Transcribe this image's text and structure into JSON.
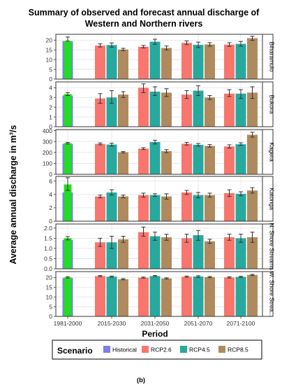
{
  "title_line1": "Summary of observed and forecast annual discharge of",
  "title_line2": "Western and Northern rivers",
  "ylabel": "Average annual discharge in m³/s",
  "xlabel": "Period",
  "caption": "(b)",
  "legend": {
    "title": "Scenario",
    "items": [
      {
        "label": "Historical",
        "color": "#7f7fea"
      },
      {
        "label": "RCP2.6",
        "color": "#f8766d"
      },
      {
        "label": "RCP4.5",
        "color": "#28a99e"
      },
      {
        "label": "RCP8.5",
        "color": "#b08a5f"
      }
    ]
  },
  "chart_data": {
    "type": "bar",
    "categories": [
      "1981-2000",
      "2015-2030",
      "2031-2050",
      "2051-2070",
      "2071-2100"
    ],
    "historical_color_fill": "#22dd22",
    "historical_color_border": "#7f7fea",
    "series_colors": {
      "RCP2.6": "#f8766d",
      "RCP4.5": "#28a99e",
      "RCP8.5": "#b08a5f"
    },
    "panels": [
      {
        "name": "Biharamulo",
        "ylim": [
          0,
          23
        ],
        "ticks": [
          0,
          5,
          10,
          15,
          20
        ],
        "tick_labels": [
          "0",
          "5",
          "10",
          "15",
          "20"
        ],
        "historical": {
          "value": 19.5,
          "err": [
            19.5,
            21.6
          ],
          "mean": 19.5
        },
        "series": [
          {
            "name": "RCP2.6",
            "values": [
              17.2,
              16.6,
              18.6,
              17.7
            ],
            "err": [
              [
                16.5,
                18.1
              ],
              [
                16.0,
                17.3
              ],
              [
                17.7,
                19.6
              ],
              [
                16.8,
                18.7
              ]
            ]
          },
          {
            "name": "RCP4.5",
            "values": [
              17.5,
              19.2,
              17.6,
              18.1
            ],
            "err": [
              [
                16.4,
                18.6
              ],
              [
                17.9,
                20.5
              ],
              [
                16.2,
                19.0
              ],
              [
                16.9,
                19.3
              ]
            ]
          },
          {
            "name": "RCP8.5",
            "values": [
              15.2,
              16.0,
              17.8,
              21.0
            ],
            "err": [
              [
                14.6,
                15.8
              ],
              [
                15.0,
                17.0
              ],
              [
                16.9,
                18.7
              ],
              [
                19.9,
                22.0
              ]
            ]
          }
        ]
      },
      {
        "name": "Bukora",
        "ylim": [
          0,
          4.6
        ],
        "ticks": [
          0,
          1,
          2,
          3,
          4
        ],
        "tick_labels": [
          "0",
          "1",
          "2",
          "3",
          "4"
        ],
        "historical": {
          "value": 3.35,
          "err": [
            3.2,
            3.5
          ],
          "mean": 3.2
        },
        "series": [
          {
            "name": "RCP2.6",
            "values": [
              2.9,
              4.0,
              3.3,
              3.4
            ],
            "err": [
              [
                2.4,
                3.4
              ],
              [
                3.5,
                4.4
              ],
              [
                2.9,
                3.7
              ],
              [
                3.1,
                3.8
              ]
            ]
          },
          {
            "name": "RCP4.5",
            "values": [
              3.0,
              3.6,
              3.7,
              3.4
            ],
            "err": [
              [
                2.4,
                3.7
              ],
              [
                3.2,
                4.1
              ],
              [
                3.2,
                4.2
              ],
              [
                2.9,
                3.8
              ]
            ]
          },
          {
            "name": "RCP8.5",
            "values": [
              3.3,
              3.5,
              3.0,
              3.5
            ],
            "err": [
              [
                3.0,
                3.6
              ],
              [
                3.1,
                3.9
              ],
              [
                2.8,
                3.2
              ],
              [
                2.9,
                4.1
              ]
            ]
          }
        ]
      },
      {
        "name": "Kagera",
        "ylim": [
          0,
          410
        ],
        "ticks": [
          0,
          100,
          200,
          300,
          400
        ],
        "tick_labels": [
          "0",
          "100",
          "200",
          "300",
          "400"
        ],
        "historical": {
          "value": 285,
          "err": [
            278,
            292
          ],
          "mean": 278
        },
        "series": [
          {
            "name": "RCP2.6",
            "values": [
              278,
              235,
              280,
              255
            ],
            "err": [
              [
                270,
                287
              ],
              [
                227,
                244
              ],
              [
                268,
                292
              ],
              [
                240,
                270
              ]
            ]
          },
          {
            "name": "RCP4.5",
            "values": [
              272,
              295,
              270,
              275
            ],
            "err": [
              [
                258,
                285
              ],
              [
                278,
                312
              ],
              [
                258,
                282
              ],
              [
                265,
                288
              ]
            ]
          },
          {
            "name": "RCP8.5",
            "values": [
              202,
              212,
              260,
              362
            ],
            "err": [
              [
                196,
                208
              ],
              [
                198,
                226
              ],
              [
                248,
                272
              ],
              [
                340,
                385
              ]
            ]
          }
        ]
      },
      {
        "name": "Katonga",
        "ylim": [
          0,
          6.7
        ],
        "ticks": [
          0,
          2,
          4,
          6
        ],
        "tick_labels": [
          "0",
          "2",
          "4",
          "6"
        ],
        "historical": {
          "value": 5.5,
          "err": [
            4.6,
            6.5
          ],
          "mean": 4.3
        },
        "series": [
          {
            "name": "RCP2.6",
            "values": [
              3.7,
              3.9,
              4.3,
              4.2
            ],
            "err": [
              [
                3.5,
                3.9
              ],
              [
                3.6,
                4.2
              ],
              [
                4.0,
                4.6
              ],
              [
                3.7,
                4.7
              ]
            ]
          },
          {
            "name": "RCP4.5",
            "values": [
              4.3,
              3.9,
              3.9,
              4.1
            ],
            "err": [
              [
                3.9,
                4.7
              ],
              [
                3.7,
                4.1
              ],
              [
                3.5,
                4.3
              ],
              [
                3.8,
                4.4
              ]
            ]
          },
          {
            "name": "RCP8.5",
            "values": [
              3.7,
              3.7,
              3.9,
              4.6
            ],
            "err": [
              [
                3.5,
                3.9
              ],
              [
                3.3,
                4.1
              ],
              [
                3.6,
                4.2
              ],
              [
                4.2,
                5.0
              ]
            ]
          }
        ]
      },
      {
        "name": "N. Shore Streams",
        "ylim": [
          0,
          2.2
        ],
        "ticks": [
          0,
          0.5,
          1.0,
          1.5,
          2.0
        ],
        "tick_labels": [
          "0.0",
          "0.5",
          "1.0",
          "1.5",
          "2.0"
        ],
        "historical": {
          "value": 1.5,
          "err": [
            1.42,
            1.58
          ],
          "mean": 1.42
        },
        "series": [
          {
            "name": "RCP2.6",
            "values": [
              1.3,
              1.8,
              1.5,
              1.55
            ],
            "err": [
              [
                1.1,
                1.5
              ],
              [
                1.6,
                2.05
              ],
              [
                1.3,
                1.7
              ],
              [
                1.4,
                1.7
              ]
            ]
          },
          {
            "name": "RCP4.5",
            "values": [
              1.3,
              1.6,
              1.65,
              1.5
            ],
            "err": [
              [
                1.0,
                1.6
              ],
              [
                1.4,
                1.8
              ],
              [
                1.4,
                1.88
              ],
              [
                1.3,
                1.7
              ]
            ]
          },
          {
            "name": "RCP8.5",
            "values": [
              1.45,
              1.55,
              1.35,
              1.55
            ],
            "err": [
              [
                1.3,
                1.6
              ],
              [
                1.4,
                1.7
              ],
              [
                1.25,
                1.45
              ],
              [
                1.3,
                1.8
              ]
            ]
          }
        ]
      },
      {
        "name": "W. Shore Strea...",
        "ylim": [
          0,
          23
        ],
        "ticks": [
          0,
          5,
          10,
          15,
          20
        ],
        "tick_labels": [
          "0",
          "5",
          "10",
          "15",
          "20"
        ],
        "historical": {
          "value": 20.0,
          "err": [
            19.7,
            20.4
          ],
          "mean": 19.7
        },
        "series": [
          {
            "name": "RCP2.6",
            "values": [
              20.7,
              19.9,
              20.4,
              20.0
            ],
            "err": [
              [
                20.4,
                21.0
              ],
              [
                19.6,
                20.2
              ],
              [
                20.1,
                20.7
              ],
              [
                19.7,
                20.3
              ]
            ]
          },
          {
            "name": "RCP4.5",
            "values": [
              20.4,
              20.7,
              20.5,
              20.3
            ],
            "err": [
              [
                20.1,
                20.7
              ],
              [
                20.4,
                21.0
              ],
              [
                20.1,
                20.9
              ],
              [
                20.0,
                20.6
              ]
            ]
          },
          {
            "name": "RCP8.5",
            "values": [
              19.1,
              19.5,
              20.2,
              21.3
            ],
            "err": [
              [
                18.8,
                19.4
              ],
              [
                19.2,
                19.8
              ],
              [
                19.9,
                20.5
              ],
              [
                21.0,
                21.6
              ]
            ]
          }
        ]
      }
    ]
  }
}
